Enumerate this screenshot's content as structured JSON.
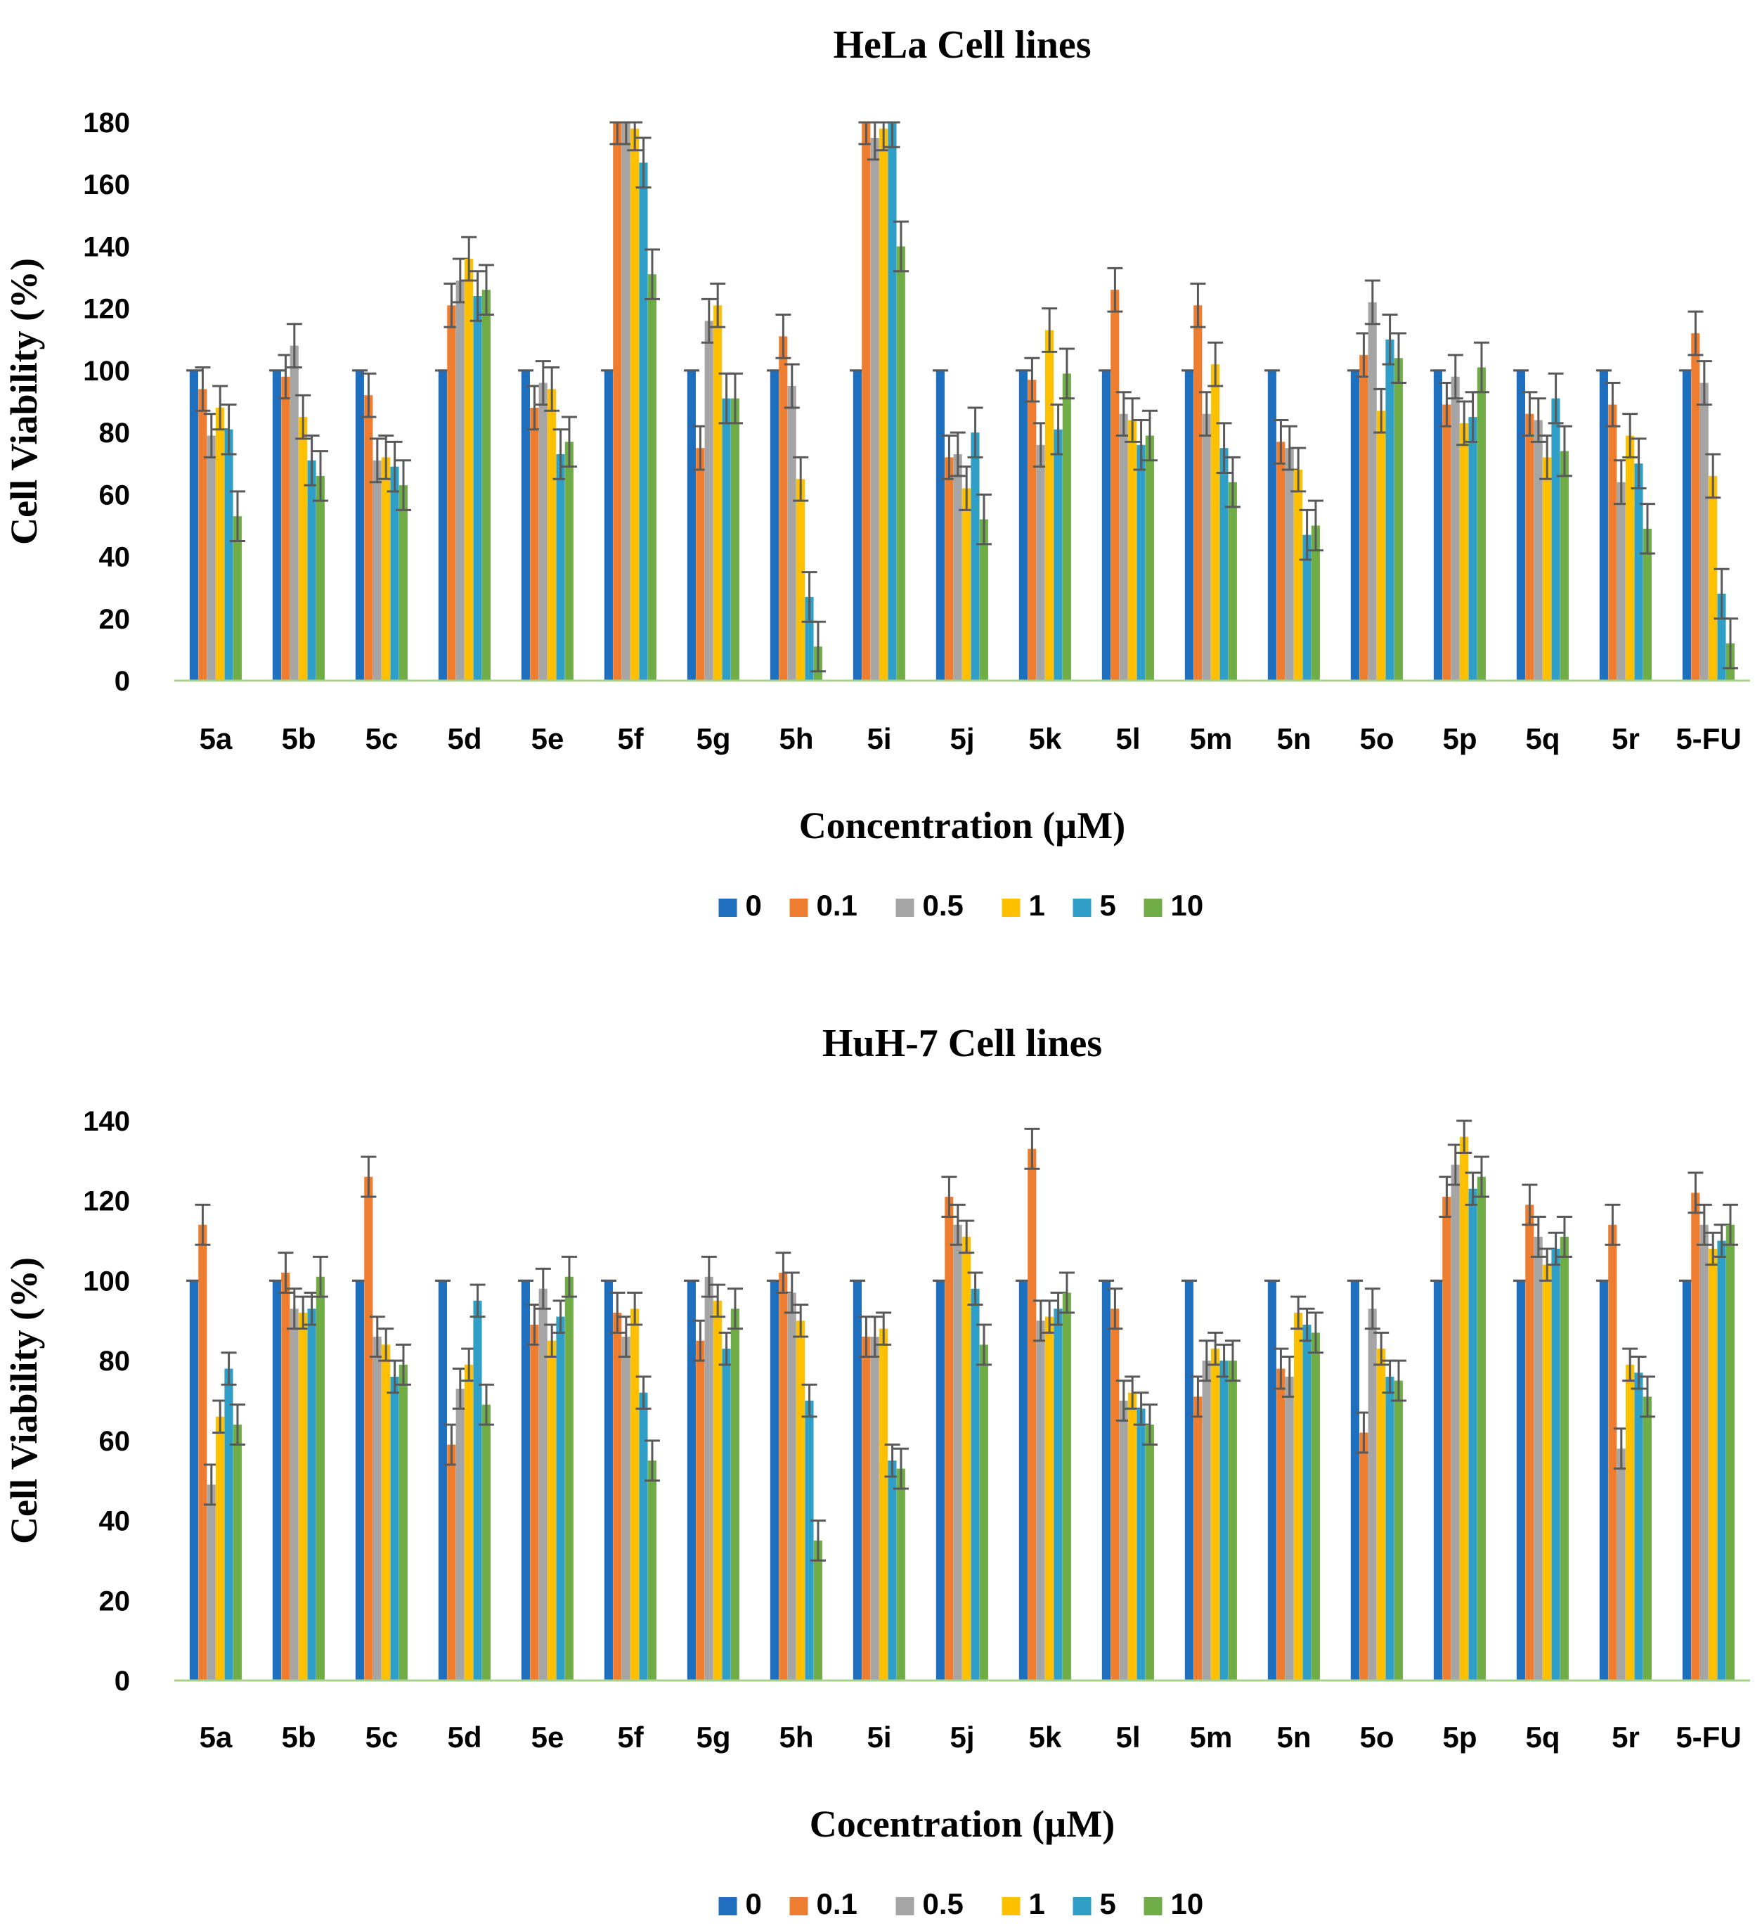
{
  "chart_data": [
    {
      "type": "bar",
      "title": "HeLa Cell lines",
      "xlabel": "Concentration (µM)",
      "ylabel": "Cell Viability (%)",
      "ylim": [
        0,
        180
      ],
      "yticks": [
        0,
        20,
        40,
        60,
        80,
        100,
        120,
        140,
        160,
        180
      ],
      "grid": false,
      "legend_position": "bottom",
      "error_bars": true,
      "categories": [
        "5a",
        "5b",
        "5c",
        "5d",
        "5e",
        "5f",
        "5g",
        "5h",
        "5i",
        "5j",
        "5k",
        "5l",
        "5m",
        "5n",
        "5o",
        "5p",
        "5q",
        "5r",
        "5-FU"
      ],
      "series": [
        {
          "name": "0",
          "color": "#1F6FBF",
          "values": [
            100,
            100,
            100,
            100,
            100,
            100,
            100,
            100,
            100,
            100,
            100,
            100,
            100,
            100,
            100,
            100,
            100,
            100,
            100
          ],
          "errors": [
            0,
            0,
            0,
            0,
            0,
            0,
            0,
            0,
            0,
            0,
            0,
            0,
            0,
            0,
            0,
            0,
            0,
            0,
            0
          ]
        },
        {
          "name": "0.1",
          "color": "#ED7D31",
          "values": [
            94,
            98,
            92,
            121,
            88,
            180,
            75,
            111,
            180,
            72,
            97,
            126,
            121,
            77,
            105,
            89,
            86,
            89,
            112
          ],
          "errors": [
            7,
            7,
            7,
            7,
            7,
            7,
            7,
            7,
            7,
            7,
            7,
            7,
            7,
            7,
            7,
            7,
            7,
            7,
            7
          ]
        },
        {
          "name": "0.5",
          "color": "#A5A5A5",
          "values": [
            79,
            108,
            71,
            129,
            96,
            180,
            116,
            95,
            175,
            73,
            76,
            86,
            86,
            75,
            122,
            98,
            84,
            64,
            96
          ],
          "errors": [
            7,
            7,
            7,
            7,
            7,
            7,
            7,
            7,
            7,
            7,
            7,
            7,
            7,
            7,
            7,
            7,
            7,
            7,
            7
          ]
        },
        {
          "name": "1",
          "color": "#FFC000",
          "values": [
            88,
            85,
            72,
            136,
            94,
            178,
            121,
            65,
            178,
            62,
            113,
            84,
            102,
            68,
            87,
            83,
            72,
            79,
            66
          ],
          "errors": [
            7,
            7,
            7,
            7,
            7,
            7,
            7,
            7,
            7,
            7,
            7,
            7,
            7,
            7,
            7,
            7,
            7,
            7,
            7
          ]
        },
        {
          "name": "5",
          "color": "#2F9FC7",
          "values": [
            81,
            71,
            69,
            124,
            73,
            167,
            91,
            27,
            180,
            80,
            81,
            76,
            75,
            47,
            110,
            85,
            91,
            70,
            28
          ],
          "errors": [
            8,
            8,
            8,
            8,
            8,
            8,
            8,
            8,
            8,
            8,
            8,
            8,
            8,
            8,
            8,
            8,
            8,
            8,
            8
          ]
        },
        {
          "name": "10",
          "color": "#70AD47",
          "values": [
            53,
            66,
            63,
            126,
            77,
            131,
            91,
            11,
            140,
            52,
            99,
            79,
            64,
            50,
            104,
            101,
            74,
            49,
            12
          ],
          "errors": [
            8,
            8,
            8,
            8,
            8,
            8,
            8,
            8,
            8,
            8,
            8,
            8,
            8,
            8,
            8,
            8,
            8,
            8,
            8
          ]
        }
      ]
    },
    {
      "type": "bar",
      "title": "HuH-7 Cell lines",
      "xlabel": "Cocentration (µM)",
      "ylabel": "Cell Viability (%)",
      "ylim": [
        0,
        140
      ],
      "yticks": [
        0,
        20,
        40,
        60,
        80,
        100,
        120,
        140
      ],
      "grid": false,
      "legend_position": "bottom",
      "error_bars": true,
      "categories": [
        "5a",
        "5b",
        "5c",
        "5d",
        "5e",
        "5f",
        "5g",
        "5h",
        "5i",
        "5j",
        "5k",
        "5l",
        "5m",
        "5n",
        "5o",
        "5p",
        "5q",
        "5r",
        "5-FU"
      ],
      "series": [
        {
          "name": "0",
          "color": "#1F6FBF",
          "values": [
            100,
            100,
            100,
            100,
            100,
            100,
            100,
            100,
            100,
            100,
            100,
            100,
            100,
            100,
            100,
            100,
            100,
            100,
            100
          ],
          "errors": [
            0,
            0,
            0,
            0,
            0,
            0,
            0,
            0,
            0,
            0,
            0,
            0,
            0,
            0,
            0,
            0,
            0,
            0,
            0
          ]
        },
        {
          "name": "0.1",
          "color": "#ED7D31",
          "values": [
            114,
            102,
            126,
            59,
            89,
            92,
            85,
            102,
            86,
            121,
            133,
            93,
            71,
            78,
            62,
            121,
            119,
            114,
            122
          ],
          "errors": [
            5,
            5,
            5,
            5,
            5,
            5,
            5,
            5,
            5,
            5,
            5,
            5,
            5,
            5,
            5,
            5,
            5,
            5,
            5
          ]
        },
        {
          "name": "0.5",
          "color": "#A5A5A5",
          "values": [
            49,
            93,
            86,
            73,
            98,
            86,
            101,
            97,
            86,
            114,
            90,
            70,
            80,
            76,
            93,
            129,
            111,
            58,
            114
          ],
          "errors": [
            5,
            5,
            5,
            5,
            5,
            5,
            5,
            5,
            5,
            5,
            5,
            5,
            5,
            5,
            5,
            5,
            5,
            5,
            5
          ]
        },
        {
          "name": "1",
          "color": "#FFC000",
          "values": [
            66,
            92,
            84,
            79,
            85,
            93,
            95,
            90,
            88,
            111,
            91,
            72,
            83,
            92,
            83,
            136,
            104,
            79,
            108
          ],
          "errors": [
            4,
            4,
            4,
            4,
            4,
            4,
            4,
            4,
            4,
            4,
            4,
            4,
            4,
            4,
            4,
            4,
            4,
            4,
            4
          ]
        },
        {
          "name": "5",
          "color": "#2F9FC7",
          "values": [
            78,
            93,
            76,
            95,
            91,
            72,
            83,
            70,
            55,
            98,
            93,
            68,
            80,
            89,
            76,
            123,
            108,
            77,
            110
          ],
          "errors": [
            4,
            4,
            4,
            4,
            4,
            4,
            4,
            4,
            4,
            4,
            4,
            4,
            4,
            4,
            4,
            4,
            4,
            4,
            4
          ]
        },
        {
          "name": "10",
          "color": "#70AD47",
          "values": [
            64,
            101,
            79,
            69,
            101,
            55,
            93,
            35,
            53,
            84,
            97,
            64,
            80,
            87,
            75,
            126,
            111,
            71,
            114
          ],
          "errors": [
            5,
            5,
            5,
            5,
            5,
            5,
            5,
            5,
            5,
            5,
            5,
            5,
            5,
            5,
            5,
            5,
            5,
            5,
            5
          ]
        }
      ]
    }
  ]
}
